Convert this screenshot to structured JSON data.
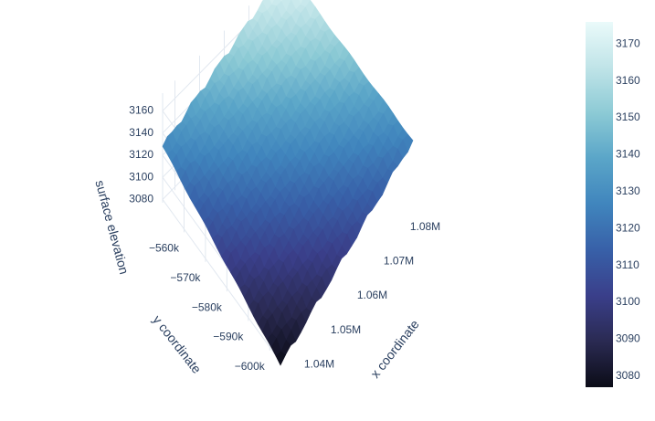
{
  "chart_data": {
    "type": "surface",
    "title": "",
    "x_axis": {
      "label": "x coordinate",
      "range": [
        1035000,
        1085000
      ],
      "ticks": [
        {
          "value": 1040000,
          "label": "1.04M"
        },
        {
          "value": 1050000,
          "label": "1.05M"
        },
        {
          "value": 1060000,
          "label": "1.06M"
        },
        {
          "value": 1070000,
          "label": "1.07M"
        },
        {
          "value": 1080000,
          "label": "1.08M"
        }
      ]
    },
    "y_axis": {
      "label": "y coordinate",
      "range": [
        -605000,
        -550000
      ],
      "ticks": [
        {
          "value": -560000,
          "label": "−560k"
        },
        {
          "value": -570000,
          "label": "−570k"
        },
        {
          "value": -580000,
          "label": "−580k"
        },
        {
          "value": -590000,
          "label": "−590k"
        },
        {
          "value": -600000,
          "label": "−600k"
        }
      ]
    },
    "z_axis": {
      "label": "surface elevation",
      "range": [
        3077,
        3176
      ],
      "ticks": [
        {
          "value": 3080,
          "label": "3080"
        },
        {
          "value": 3100,
          "label": "3100"
        },
        {
          "value": 3120,
          "label": "3120"
        },
        {
          "value": 3140,
          "label": "3140"
        },
        {
          "value": 3160,
          "label": "3160"
        }
      ]
    },
    "surface_corners": {
      "x_min_y_min": 3077,
      "x_max_y_min": 3125,
      "x_min_y_max": 3128,
      "x_max_y_max": 3176
    },
    "colorbar": {
      "range": [
        3077,
        3176
      ],
      "ticks": [
        {
          "value": 3080,
          "label": "3080"
        },
        {
          "value": 3090,
          "label": "3090"
        },
        {
          "value": 3100,
          "label": "3100"
        },
        {
          "value": 3110,
          "label": "3110"
        },
        {
          "value": 3120,
          "label": "3120"
        },
        {
          "value": 3130,
          "label": "3130"
        },
        {
          "value": 3140,
          "label": "3140"
        },
        {
          "value": 3150,
          "label": "3150"
        },
        {
          "value": 3160,
          "label": "3160"
        },
        {
          "value": 3170,
          "label": "3170"
        }
      ],
      "colors": [
        "#0b0c17",
        "#2a2a52",
        "#3a3f8a",
        "#3860a8",
        "#4085bd",
        "#5aa5c8",
        "#8ccad5",
        "#c0e4e8",
        "#eafafa"
      ]
    },
    "grid": true
  }
}
